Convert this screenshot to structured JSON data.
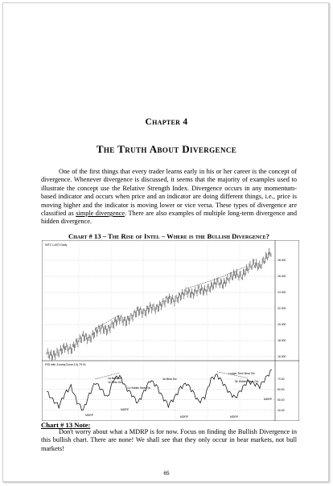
{
  "chapter": {
    "label": "Chapter 4",
    "title": "The Truth About Divergence"
  },
  "intro": {
    "text_before": "One of the first things that every trader learns early in his or her career is the concept of divergence. Whenever divergence is discussed, it seems that the majority of examples used to illustrate the concept use the Relative Strength Index.  Divergence occurs in any momentum-based indicator and occurs when price and an indicator are doing different things, i.e., price is moving higher and the indicator is moving lower or vice versa.  These types of divergence are classified as ",
    "underlined": "simple divergence",
    "text_after": ".  There are also examples of multiple long-term divergence and hidden divergence."
  },
  "chart": {
    "caption": "Chart # 13 – The Rise of Intel – Where is the Bullish Divergence?",
    "price_header": "INTC LAST-Daily",
    "price_levels": [
      "28.000",
      "26.000",
      "24.000",
      "22.000",
      "20.000",
      "18.000",
      "16.000"
    ],
    "indicator_header": "RSI with Zones(Close,14) 79.01",
    "indicator_levels": [
      "70.00",
      "60.00",
      "50.00",
      "40.00"
    ],
    "annotations": {
      "bear1": "1a Bear Div",
      "bear1b": "1b Bear Div",
      "hidden1": "1c Hidden Bear Div",
      "bear2": "3a Bear Div",
      "longer_bear": "Longer Term Bear Div",
      "hidden2": "5b Hidden Bear Div",
      "mdrp_a": "MDRP",
      "mdrp_b": "MDRP",
      "mdrp_c": "MDRP",
      "mdrp_d": "MDRP",
      "mdrp_e": "MDRP"
    },
    "chart_data": {
      "type": "line",
      "title": "Chart # 13 – The Rise of Intel – Where is the Bullish Divergence?",
      "series": [
        {
          "name": "INTC LAST-Daily",
          "description": "price, upper panel",
          "ylim": [
            16,
            29.5
          ],
          "values": [
            16.4,
            16.1,
            16.6,
            17.2,
            16.9,
            17.8,
            18.6,
            18.2,
            19.1,
            19.6,
            19.3,
            20.2,
            20.8,
            20.4,
            21.0,
            21.8,
            21.5,
            22.2,
            22.0,
            22.6,
            23.3,
            23.0,
            23.6,
            24.1,
            23.8,
            24.4,
            24.2,
            24.7,
            25.3,
            25.0,
            25.8,
            26.3,
            26.0,
            26.9,
            27.6,
            27.2,
            28.3,
            29.1
          ]
        },
        {
          "name": "RSI with Zones(Close,14)",
          "description": "indicator, lower panel",
          "ylim": [
            32,
            80
          ],
          "values": [
            58,
            50,
            44,
            56,
            63,
            48,
            40,
            55,
            67,
            60,
            52,
            70,
            73,
            62,
            55,
            47,
            58,
            69,
            64,
            53,
            45,
            52,
            62,
            66,
            58,
            48,
            53,
            70,
            74,
            66,
            57,
            52,
            60,
            68,
            66,
            63,
            71,
            79
          ]
        }
      ]
    }
  },
  "note": {
    "heading": "Chart # 13 Note:",
    "text": "Don't worry about what a MDRP is for now.  Focus on finding the Bullish Divergence in this bullish chart.  There are none!  We shall see that they only occur in bear markets, not bull markets!"
  },
  "page_number": "65"
}
